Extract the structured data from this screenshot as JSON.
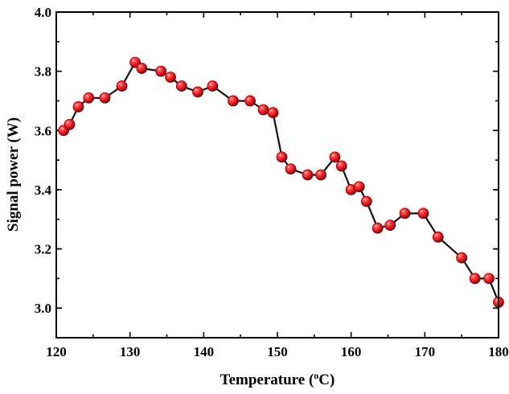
{
  "chart_data": {
    "type": "line",
    "title": "",
    "xlabel_main": "Temperature (",
    "xlabel_sup": "o",
    "xlabel_unit": "C)",
    "ylabel": "Signal power (W)",
    "xlim": [
      120,
      180
    ],
    "ylim": [
      2.9,
      4.0
    ],
    "xticks": [
      "120",
      "130",
      "140",
      "150",
      "160",
      "170",
      "180"
    ],
    "yticks": [
      "3.0",
      "3.2",
      "3.4",
      "3.6",
      "3.8",
      "4.0"
    ],
    "marker_color": "#e8141c",
    "line_color": "#111111",
    "grid": false,
    "series": [
      {
        "x": [
          121,
          121.8,
          123,
          124.4,
          126.6,
          128.9,
          130.7,
          131.6,
          134.2,
          135.5,
          137,
          139.2,
          141.2,
          144,
          146.3,
          148.1,
          149.4,
          150.6,
          151.8,
          154.1,
          155.9,
          157.8,
          158.7,
          160,
          161.1,
          162.1,
          163.6,
          165.3,
          167.3,
          169.8,
          171.8,
          175,
          176.8,
          178.7,
          180
        ],
        "y": [
          3.6,
          3.62,
          3.68,
          3.71,
          3.71,
          3.75,
          3.83,
          3.81,
          3.8,
          3.78,
          3.75,
          3.73,
          3.75,
          3.7,
          3.7,
          3.67,
          3.66,
          3.51,
          3.47,
          3.45,
          3.45,
          3.51,
          3.48,
          3.4,
          3.41,
          3.36,
          3.27,
          3.28,
          3.32,
          3.32,
          3.24,
          3.17,
          3.1,
          3.1,
          3.02
        ]
      }
    ]
  }
}
